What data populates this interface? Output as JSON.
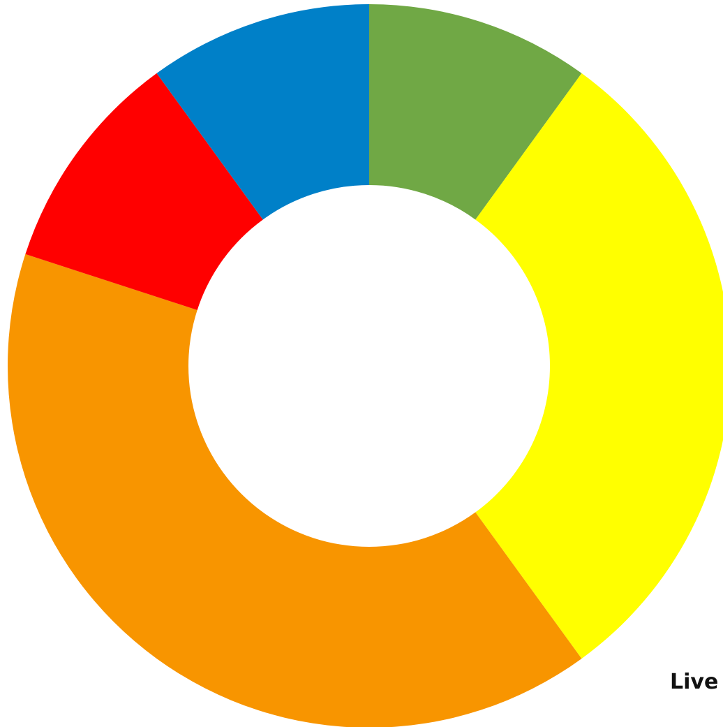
{
  "chart_data": {
    "type": "pie",
    "variant": "donut",
    "start_angle_deg": 0,
    "direction": "clockwise",
    "slices": [
      {
        "value": 10,
        "color": "#70a845"
      },
      {
        "value": 30,
        "color": "#ffff00"
      },
      {
        "value": 40,
        "color": "#f89500"
      },
      {
        "value": 10,
        "color": "#ff0000"
      },
      {
        "value": 10,
        "color": "#0080c8"
      }
    ],
    "title": "",
    "legend": "none"
  },
  "annotation": {
    "text": "Live"
  }
}
